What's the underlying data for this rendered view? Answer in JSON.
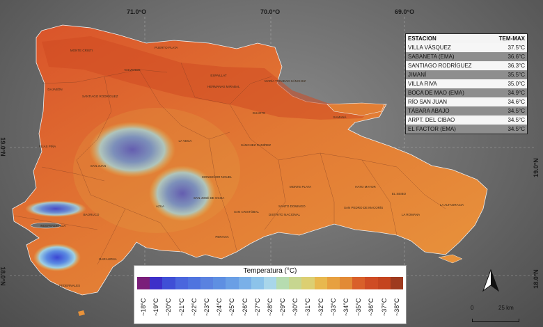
{
  "coords": {
    "top": [
      "71.0°O",
      "70.0°O",
      "69.0°O"
    ],
    "left": [
      "19.0°N",
      "18.0°N"
    ],
    "right": [
      "19.0°N",
      "18.0°N"
    ]
  },
  "places": [
    "MONTE CRISTI",
    "PUERTO PLATA",
    "VALVERDE",
    "ESPAILLAT",
    "MARÍA TRINIDAD SÁNCHEZ",
    "DAJABÓN",
    "SANTIAGO RODRÍGUEZ",
    "HERMANAS MIRABAL",
    "SAMANÁ",
    "DUARTE",
    "ELÍAS PIÑA",
    "LA VEGA",
    "SÁNCHEZ RAMÍREZ",
    "SAN JUAN",
    "MONSEÑOR NOUEL",
    "MONTE PLATA",
    "HATO MAYOR",
    "EL SEIBO",
    "AZUA",
    "SAN JOSÉ DE OCOA",
    "SAN CRISTÓBAL",
    "SANTO DOMINGO",
    "SAN PEDRO DE MACORÍS",
    "LA ROMANA",
    "LA ALTAGRACIA",
    "INDEPENDENCIA",
    "BAORUCO",
    "DISTRITO NACIONAL",
    "PERAVIA",
    "BARAHONA",
    "PEDERNALES"
  ],
  "table": {
    "headers": [
      "ESTACION",
      "TEM-MAX"
    ],
    "rows": [
      {
        "station": "VILLA VÁSQUEZ",
        "temp": "37.5°C"
      },
      {
        "station": "SABANETA (EMA)",
        "temp": "36.6°C"
      },
      {
        "station": "SANTIAGO RODRÍGUEZ",
        "temp": "36.3°C"
      },
      {
        "station": "JIMANÍ",
        "temp": "35.5°C"
      },
      {
        "station": "VILLA RIVA",
        "temp": "35.0°C"
      },
      {
        "station": "BOCA DE MAO (EMA)",
        "temp": "34.9°C"
      },
      {
        "station": "RÍO SAN JUAN",
        "temp": "34.6°C"
      },
      {
        "station": "TÁBARA ABAJO",
        "temp": "34.5°C"
      },
      {
        "station": "ARPT. DEL CIBAO",
        "temp": "34.5°C"
      },
      {
        "station": "EL FACTOR (EMA)",
        "temp": "34.5°C"
      }
    ]
  },
  "legend": {
    "title": "Temperatura (°C)",
    "labels": [
      "~18°C",
      "~19°C",
      "~20°C",
      "~21°C",
      "~22°C",
      "~23°C",
      "~24°C",
      "~25°C",
      "~26°C",
      "~27°C",
      "~28°C",
      "~29°C",
      "~30°C",
      "~31°C",
      "~32°C",
      "~33°C",
      "~34°C",
      "~35°C",
      "~36°C",
      "~37°C",
      "~38°C"
    ],
    "colors": [
      "#7a1f7a",
      "#3d2fc9",
      "#3f4fd6",
      "#4a66dd",
      "#4f74df",
      "#5a82e0",
      "#5e8fe2",
      "#6a9fe5",
      "#7ab0e8",
      "#8cc3ea",
      "#a8d6ea",
      "#b6dcb0",
      "#c7d690",
      "#dccf72",
      "#e8b84e",
      "#e7a040",
      "#e28a36",
      "#d9602a",
      "#cf4c24",
      "#c4441f",
      "#9e3a1f"
    ]
  },
  "scale": {
    "zero": "0",
    "label": "25 km"
  },
  "colors": {
    "hot": "#d9542a",
    "warm": "#e88a38",
    "cool": "#4a5ed8",
    "mid": "#e6a846"
  }
}
